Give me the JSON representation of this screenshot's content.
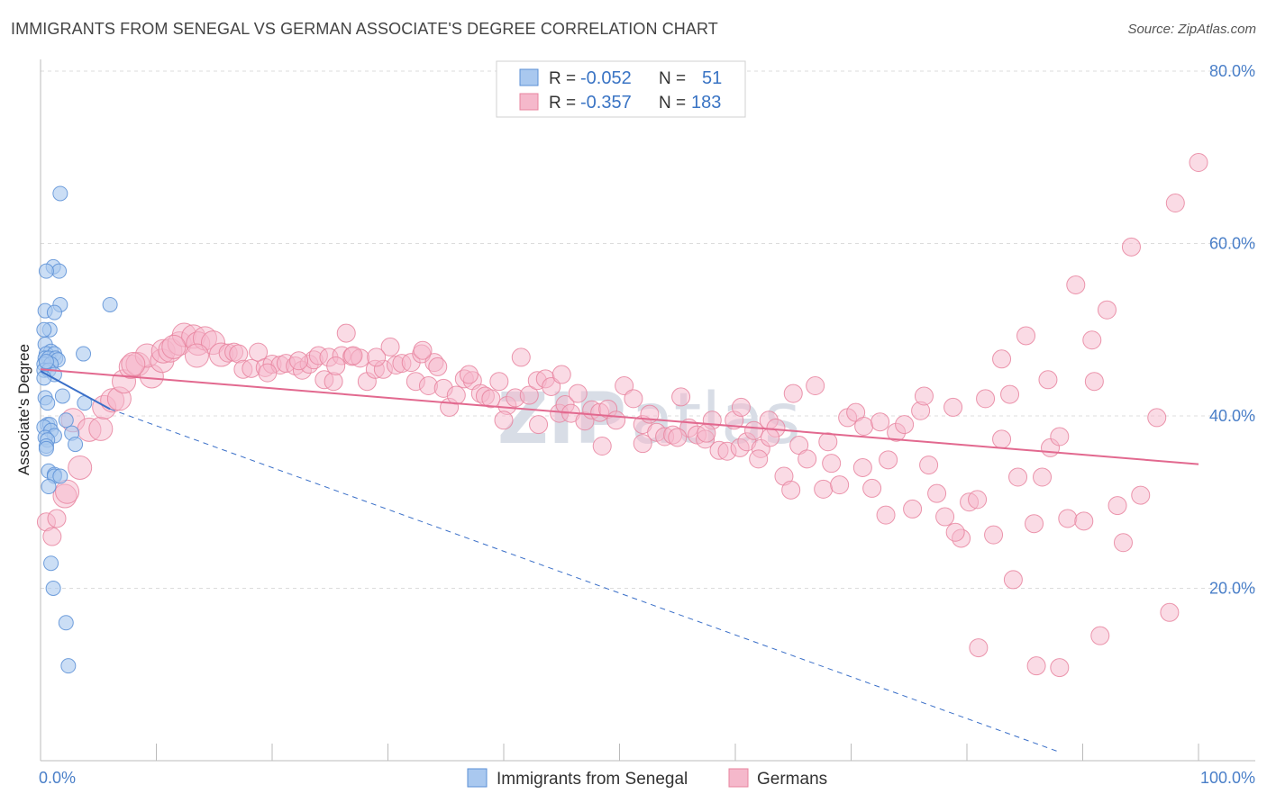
{
  "header": {
    "title": "IMMIGRANTS FROM SENEGAL VS GERMAN ASSOCIATE'S DEGREE CORRELATION CHART",
    "source": "Source: ZipAtlas.com"
  },
  "watermark": {
    "zip": "ZIP",
    "atlas": "atlas"
  },
  "colors": {
    "blue_fill": "#a9c8ef",
    "blue_stroke": "#5b8fd6",
    "blue_line": "#3a6fc8",
    "pink_fill": "#f5b8cb",
    "pink_stroke": "#e8849f",
    "pink_line": "#e2698f",
    "grid": "#dcdcdc",
    "tick_text": "#4a7fc8"
  },
  "legend_box": {
    "rows": [
      {
        "r_label": "R =",
        "r_value": "-0.052",
        "n_label": "N =",
        "n_value": "51",
        "color": "blue"
      },
      {
        "r_label": "R =",
        "r_value": "-0.357",
        "n_label": "N =",
        "n_value": "183",
        "color": "pink"
      }
    ]
  },
  "bottom_legend": [
    {
      "label": "Immigrants from Senegal",
      "color": "blue"
    },
    {
      "label": "Germans",
      "color": "pink"
    }
  ],
  "chart_data": {
    "type": "scatter",
    "title": "IMMIGRANTS FROM SENEGAL VS GERMAN ASSOCIATE'S DEGREE CORRELATION CHART",
    "xlabel": "",
    "ylabel": "Associate's Degree",
    "xlim": [
      0,
      100
    ],
    "ylim": [
      0,
      80
    ],
    "x_tick_labels": [
      "0.0%",
      "100.0%"
    ],
    "y_ticks": [
      20,
      40,
      60,
      80
    ],
    "y_tick_labels": [
      "20.0%",
      "40.0%",
      "60.0%",
      "80.0%"
    ],
    "grid": true,
    "legend_position": "top-center",
    "series": [
      {
        "name": "Immigrants from Senegal",
        "color": "blue",
        "r": -0.052,
        "n": 51,
        "trend": {
          "x": [
            0,
            6
          ],
          "y": [
            45.2,
            40.8
          ]
        },
        "trend_extended": {
          "x": [
            6,
            88
          ],
          "y": [
            40.8,
            1.0
          ]
        },
        "points": [
          [
            1.7,
            65.8
          ],
          [
            1.1,
            57.3
          ],
          [
            1.6,
            56.8
          ],
          [
            0.5,
            56.8
          ],
          [
            1.7,
            52.9
          ],
          [
            6.0,
            52.9
          ],
          [
            0.4,
            52.2
          ],
          [
            1.2,
            52.0
          ],
          [
            0.8,
            50.0
          ],
          [
            0.3,
            50.0
          ],
          [
            0.4,
            48.3
          ],
          [
            0.9,
            47.5
          ],
          [
            0.5,
            47.2
          ],
          [
            1.2,
            47.2
          ],
          [
            3.7,
            47.2
          ],
          [
            0.4,
            46.7
          ],
          [
            0.7,
            46.7
          ],
          [
            1.3,
            46.7
          ],
          [
            1.5,
            46.5
          ],
          [
            0.3,
            46.0
          ],
          [
            0.9,
            46.0
          ],
          [
            0.3,
            45.3
          ],
          [
            0.7,
            45.3
          ],
          [
            1.2,
            44.8
          ],
          [
            0.3,
            44.4
          ],
          [
            1.9,
            42.3
          ],
          [
            0.4,
            42.1
          ],
          [
            3.8,
            41.5
          ],
          [
            0.6,
            41.5
          ],
          [
            2.2,
            39.5
          ],
          [
            0.6,
            39.0
          ],
          [
            0.8,
            39.0
          ],
          [
            0.3,
            38.7
          ],
          [
            0.9,
            38.3
          ],
          [
            2.7,
            38.0
          ],
          [
            1.2,
            37.7
          ],
          [
            0.4,
            37.5
          ],
          [
            0.6,
            37.2
          ],
          [
            3.0,
            36.7
          ],
          [
            0.5,
            36.5
          ],
          [
            0.5,
            36.2
          ],
          [
            0.7,
            33.6
          ],
          [
            1.2,
            33.2
          ],
          [
            1.2,
            33.0
          ],
          [
            1.7,
            33.0
          ],
          [
            0.7,
            31.8
          ],
          [
            0.9,
            22.9
          ],
          [
            1.1,
            20.0
          ],
          [
            2.2,
            16.0
          ],
          [
            2.4,
            11.0
          ],
          [
            0.5,
            46.3
          ]
        ]
      },
      {
        "name": "Germans",
        "color": "pink",
        "r": -0.357,
        "n": 183,
        "trend": {
          "x": [
            0,
            100
          ],
          "y": [
            45.4,
            34.4
          ]
        },
        "points": [
          [
            0.5,
            27.7
          ],
          [
            1.0,
            26.0
          ],
          [
            1.4,
            28.1
          ],
          [
            2.1,
            30.7
          ],
          [
            2.3,
            31.2
          ],
          [
            3.4,
            34.0
          ],
          [
            2.8,
            39.5
          ],
          [
            4.2,
            38.4
          ],
          [
            5.2,
            38.5
          ],
          [
            5.5,
            41.0
          ],
          [
            6.2,
            41.8
          ],
          [
            6.8,
            42.0
          ],
          [
            7.2,
            44.0
          ],
          [
            7.8,
            45.7
          ],
          [
            8.4,
            46.0
          ],
          [
            9.6,
            44.6
          ],
          [
            9.2,
            47.0
          ],
          [
            10.5,
            46.4
          ],
          [
            10.6,
            47.5
          ],
          [
            11.2,
            47.6
          ],
          [
            12.0,
            48.4
          ],
          [
            12.4,
            49.4
          ],
          [
            13.2,
            49.2
          ],
          [
            13.6,
            48.4
          ],
          [
            14.2,
            49.0
          ],
          [
            14.9,
            48.5
          ],
          [
            15.6,
            47.1
          ],
          [
            16.2,
            47.3
          ],
          [
            16.7,
            47.4
          ],
          [
            17.1,
            47.2
          ],
          [
            17.5,
            45.4
          ],
          [
            18.2,
            45.5
          ],
          [
            18.8,
            47.4
          ],
          [
            19.4,
            45.6
          ],
          [
            20.0,
            46.0
          ],
          [
            20.7,
            45.9
          ],
          [
            21.2,
            46.1
          ],
          [
            22.0,
            45.8
          ],
          [
            22.6,
            45.3
          ],
          [
            23.2,
            46.0
          ],
          [
            23.6,
            46.5
          ],
          [
            24.0,
            47.0
          ],
          [
            24.5,
            44.2
          ],
          [
            24.9,
            46.8
          ],
          [
            25.3,
            44.0
          ],
          [
            26.0,
            47.0
          ],
          [
            26.4,
            49.6
          ],
          [
            26.9,
            46.9
          ],
          [
            27.6,
            46.7
          ],
          [
            28.2,
            44.0
          ],
          [
            28.9,
            45.4
          ],
          [
            29.6,
            45.4
          ],
          [
            30.2,
            48.0
          ],
          [
            30.7,
            45.9
          ],
          [
            31.2,
            46.1
          ],
          [
            32.0,
            46.2
          ],
          [
            32.4,
            44.0
          ],
          [
            32.9,
            47.2
          ],
          [
            33.5,
            43.5
          ],
          [
            34.0,
            46.2
          ],
          [
            34.3,
            45.7
          ],
          [
            34.8,
            43.2
          ],
          [
            35.3,
            41.0
          ],
          [
            35.9,
            42.4
          ],
          [
            36.6,
            44.3
          ],
          [
            37.3,
            44.1
          ],
          [
            38.0,
            42.6
          ],
          [
            38.4,
            42.3
          ],
          [
            38.9,
            42.0
          ],
          [
            39.6,
            44.0
          ],
          [
            40.3,
            41.2
          ],
          [
            41.0,
            42.1
          ],
          [
            42.2,
            42.4
          ],
          [
            42.9,
            44.1
          ],
          [
            43.6,
            44.3
          ],
          [
            44.1,
            43.4
          ],
          [
            44.8,
            40.3
          ],
          [
            45.3,
            41.3
          ],
          [
            45.8,
            40.3
          ],
          [
            46.4,
            42.6
          ],
          [
            47.0,
            39.4
          ],
          [
            47.6,
            40.7
          ],
          [
            48.3,
            40.4
          ],
          [
            49.0,
            40.8
          ],
          [
            49.7,
            39.5
          ],
          [
            50.4,
            43.5
          ],
          [
            51.2,
            42.0
          ],
          [
            52.0,
            39.0
          ],
          [
            52.6,
            40.2
          ],
          [
            53.2,
            38.1
          ],
          [
            53.9,
            37.6
          ],
          [
            54.6,
            37.8
          ],
          [
            55.3,
            42.2
          ],
          [
            56.0,
            38.6
          ],
          [
            56.7,
            37.8
          ],
          [
            57.4,
            37.3
          ],
          [
            58.0,
            39.5
          ],
          [
            58.6,
            36.0
          ],
          [
            59.3,
            35.9
          ],
          [
            59.9,
            39.5
          ],
          [
            60.4,
            36.3
          ],
          [
            61.0,
            37.0
          ],
          [
            61.6,
            38.3
          ],
          [
            62.2,
            36.2
          ],
          [
            62.9,
            39.5
          ],
          [
            63.5,
            38.6
          ],
          [
            64.2,
            33.0
          ],
          [
            64.8,
            31.4
          ],
          [
            65.5,
            36.6
          ],
          [
            66.2,
            35.0
          ],
          [
            66.9,
            43.5
          ],
          [
            67.6,
            31.5
          ],
          [
            68.3,
            34.5
          ],
          [
            69.0,
            32.0
          ],
          [
            69.7,
            39.8
          ],
          [
            70.4,
            40.4
          ],
          [
            71.1,
            38.8
          ],
          [
            71.8,
            31.6
          ],
          [
            72.5,
            39.3
          ],
          [
            73.2,
            34.9
          ],
          [
            73.9,
            38.1
          ],
          [
            74.6,
            39.0
          ],
          [
            75.3,
            29.2
          ],
          [
            76.0,
            40.6
          ],
          [
            76.7,
            34.3
          ],
          [
            77.4,
            31.0
          ],
          [
            78.1,
            28.3
          ],
          [
            78.8,
            41.0
          ],
          [
            79.5,
            25.8
          ],
          [
            80.2,
            30.0
          ],
          [
            80.9,
            30.3
          ],
          [
            81.6,
            42.0
          ],
          [
            82.3,
            26.2
          ],
          [
            83.0,
            37.3
          ],
          [
            83.7,
            42.5
          ],
          [
            84.4,
            32.9
          ],
          [
            85.1,
            49.3
          ],
          [
            85.8,
            27.5
          ],
          [
            86.5,
            32.9
          ],
          [
            87.2,
            36.3
          ],
          [
            88.0,
            37.6
          ],
          [
            88.7,
            28.1
          ],
          [
            89.4,
            55.2
          ],
          [
            90.1,
            27.8
          ],
          [
            90.8,
            48.8
          ],
          [
            91.5,
            14.5
          ],
          [
            92.1,
            52.3
          ],
          [
            93.0,
            29.6
          ],
          [
            94.2,
            59.6
          ],
          [
            95.0,
            30.8
          ],
          [
            96.4,
            39.8
          ],
          [
            97.5,
            17.2
          ],
          [
            98.0,
            64.7
          ],
          [
            100.0,
            69.4
          ],
          [
            76.3,
            42.3
          ],
          [
            71.0,
            34.0
          ],
          [
            65.0,
            42.6
          ],
          [
            62.0,
            35.0
          ],
          [
            60.5,
            41.0
          ],
          [
            57.5,
            38.0
          ],
          [
            55.0,
            37.5
          ],
          [
            52.0,
            36.8
          ],
          [
            63.0,
            37.5
          ],
          [
            68.0,
            37.0
          ],
          [
            73.0,
            28.5
          ],
          [
            79.0,
            26.5
          ],
          [
            81.0,
            13.1
          ],
          [
            84.0,
            21.0
          ],
          [
            86.0,
            11.0
          ],
          [
            88.0,
            10.8
          ],
          [
            93.5,
            25.3
          ],
          [
            91.0,
            44.0
          ],
          [
            83.0,
            46.6
          ],
          [
            87.0,
            44.2
          ],
          [
            45.0,
            44.8
          ],
          [
            41.5,
            46.8
          ],
          [
            37.0,
            44.8
          ],
          [
            33.0,
            47.6
          ],
          [
            29.0,
            46.8
          ],
          [
            27.0,
            47.0
          ],
          [
            25.5,
            45.8
          ],
          [
            22.3,
            46.4
          ],
          [
            19.6,
            45.0
          ],
          [
            8.0,
            46.0
          ],
          [
            11.5,
            48.0
          ],
          [
            13.5,
            47.0
          ],
          [
            43.0,
            39.0
          ],
          [
            40.0,
            39.5
          ],
          [
            48.5,
            36.5
          ]
        ]
      }
    ]
  }
}
